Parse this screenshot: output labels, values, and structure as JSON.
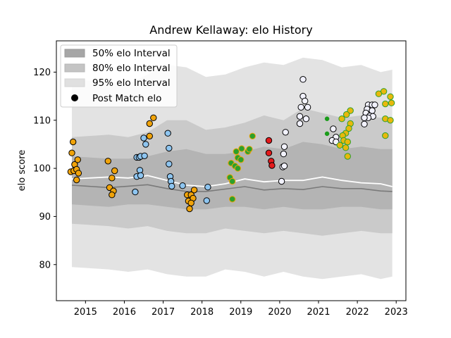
{
  "chart_data": {
    "type": "scatter",
    "title": "Andrew Kellaway: elo History",
    "xlabel": "",
    "ylabel": "elo score",
    "xlim": [
      2014.25,
      2023.25
    ],
    "ylim": [
      72.5,
      126.5
    ],
    "x_ticks": [
      2015,
      2016,
      2017,
      2018,
      2019,
      2020,
      2021,
      2022,
      2023
    ],
    "y_ticks": [
      80,
      90,
      100,
      110,
      120
    ],
    "grid": false,
    "legend_position": "top-left",
    "legend": [
      {
        "label": "50% elo Interval",
        "kind": "band",
        "color": "#a6a6a6"
      },
      {
        "label": "80% elo Interval",
        "kind": "band",
        "color": "#c4c4c4"
      },
      {
        "label": "95% elo Interval",
        "kind": "band",
        "color": "#e0e0e0"
      },
      {
        "label": "Post Match elo",
        "kind": "marker",
        "color": "#000000"
      }
    ],
    "colors": {
      "band95": "#e3e3e3",
      "band80": "#cacaca",
      "band50": "#b4b4b4",
      "mean_line": "#ffffff",
      "median_line": "#7a7a7a"
    },
    "bands": {
      "x": [
        2014.65,
        2015.6,
        2016.1,
        2016.6,
        2017.1,
        2017.6,
        2018.1,
        2018.6,
        2019.1,
        2019.6,
        2020.1,
        2020.6,
        2021.1,
        2021.6,
        2022.1,
        2022.6,
        2022.9
      ],
      "p95_low": [
        79.5,
        79.0,
        78.5,
        79.0,
        78.0,
        77.5,
        77.5,
        79.0,
        78.5,
        77.5,
        78.5,
        77.5,
        77.0,
        77.5,
        78.0,
        77.0,
        77.5
      ],
      "p95_high": [
        118.5,
        118.0,
        117.5,
        119.5,
        121.5,
        121.0,
        119.0,
        119.5,
        121.0,
        122.0,
        121.5,
        123.0,
        122.5,
        121.0,
        121.5,
        120.0,
        120.5
      ],
      "p80_low": [
        88.5,
        88.0,
        87.5,
        88.0,
        87.0,
        86.5,
        86.5,
        87.5,
        87.0,
        86.5,
        87.0,
        86.5,
        86.0,
        86.5,
        87.0,
        86.5,
        86.5
      ],
      "p80_high": [
        106.5,
        107.0,
        106.5,
        107.5,
        110.0,
        110.0,
        108.0,
        108.5,
        109.5,
        111.0,
        110.0,
        112.5,
        111.5,
        110.5,
        111.0,
        110.5,
        110.5
      ],
      "p50_low": [
        92.5,
        92.0,
        92.5,
        92.5,
        92.0,
        91.5,
        91.5,
        92.0,
        92.0,
        91.5,
        92.0,
        91.5,
        91.5,
        92.0,
        92.0,
        91.5,
        91.5
      ],
      "p50_high": [
        102.5,
        102.0,
        102.0,
        102.5,
        103.5,
        104.0,
        103.0,
        103.0,
        103.5,
        104.5,
        104.0,
        105.5,
        105.0,
        104.0,
        104.5,
        104.0,
        104.0
      ],
      "mean": [
        97.8,
        98.2,
        98.0,
        98.5,
        97.5,
        96.5,
        96.2,
        96.8,
        97.8,
        97.2,
        97.5,
        97.5,
        98.2,
        97.5,
        97.0,
        96.8,
        96.2
      ],
      "median": [
        96.5,
        96.0,
        96.3,
        96.6,
        95.8,
        95.2,
        95.2,
        95.7,
        96.2,
        95.5,
        95.8,
        95.6,
        96.2,
        95.8,
        95.8,
        95.3,
        95.2
      ]
    },
    "series": [
      {
        "color": "#f0a30a",
        "edge": "#000000",
        "points": [
          [
            2014.68,
            105.5
          ],
          [
            2014.65,
            103.2
          ],
          [
            2014.72,
            100.8
          ],
          [
            2014.8,
            101.8
          ],
          [
            2014.62,
            99.3
          ],
          [
            2014.7,
            99.5
          ],
          [
            2014.77,
            99.8
          ],
          [
            2014.82,
            99.0
          ],
          [
            2014.77,
            97.6
          ],
          [
            2015.58,
            101.5
          ],
          [
            2015.75,
            99.5
          ],
          [
            2015.68,
            98.0
          ],
          [
            2015.62,
            96.0
          ],
          [
            2015.72,
            95.3
          ],
          [
            2015.68,
            94.5
          ],
          [
            2016.65,
            109.3
          ],
          [
            2016.75,
            110.5
          ],
          [
            2016.65,
            106.7
          ],
          [
            2017.62,
            94.5
          ],
          [
            2017.72,
            94.5
          ],
          [
            2017.8,
            95.5
          ],
          [
            2017.65,
            93.2
          ],
          [
            2017.77,
            93.8
          ],
          [
            2017.72,
            92.8
          ],
          [
            2017.68,
            91.6
          ]
        ]
      },
      {
        "color": "#8ec5f0",
        "edge": "#000000",
        "points": [
          [
            2016.32,
            102.3
          ],
          [
            2016.38,
            102.3
          ],
          [
            2016.42,
            102.5
          ],
          [
            2016.52,
            102.6
          ],
          [
            2016.5,
            106.3
          ],
          [
            2016.55,
            105.0
          ],
          [
            2016.4,
            99.6
          ],
          [
            2016.32,
            98.3
          ],
          [
            2016.42,
            98.5
          ],
          [
            2016.28,
            95.1
          ],
          [
            2017.12,
            107.3
          ],
          [
            2017.15,
            104.2
          ],
          [
            2017.15,
            100.9
          ],
          [
            2017.18,
            98.3
          ],
          [
            2017.2,
            97.3
          ],
          [
            2017.22,
            96.3
          ],
          [
            2017.5,
            96.4
          ],
          [
            2018.15,
            96.1
          ],
          [
            2018.12,
            93.3
          ]
        ]
      },
      {
        "color": "#2ca02c",
        "edge": "#f0a30a",
        "points": [
          [
            2018.72,
            98.1
          ],
          [
            2018.78,
            97.3
          ],
          [
            2018.75,
            101.1
          ],
          [
            2018.85,
            100.5
          ],
          [
            2018.92,
            100.0
          ],
          [
            2018.88,
            103.5
          ],
          [
            2018.92,
            102.2
          ],
          [
            2019.02,
            104.1
          ],
          [
            2019.0,
            101.8
          ],
          [
            2019.18,
            103.5
          ],
          [
            2019.22,
            104.0
          ],
          [
            2019.3,
            106.7
          ],
          [
            2018.78,
            93.6
          ]
        ]
      },
      {
        "color": "#e31a1c",
        "edge": "#000000",
        "points": [
          [
            2019.72,
            105.8
          ],
          [
            2019.72,
            103.2
          ],
          [
            2019.78,
            101.5
          ],
          [
            2019.8,
            100.6
          ]
        ]
      },
      {
        "color": "#f2f2ff",
        "edge": "#000000",
        "points": [
          [
            2020.6,
            118.5
          ],
          [
            2020.6,
            115.0
          ],
          [
            2020.65,
            114.0
          ],
          [
            2020.55,
            112.7
          ],
          [
            2020.72,
            112.7
          ],
          [
            2020.52,
            110.8
          ],
          [
            2020.68,
            110.3
          ],
          [
            2020.52,
            109.3
          ],
          [
            2020.15,
            107.5
          ],
          [
            2020.12,
            104.5
          ],
          [
            2020.1,
            103.0
          ],
          [
            2020.08,
            100.3
          ],
          [
            2020.12,
            100.5
          ],
          [
            2020.05,
            97.3
          ],
          [
            2021.38,
            108.2
          ],
          [
            2021.45,
            106.5
          ],
          [
            2021.35,
            105.8
          ],
          [
            2021.45,
            105.5
          ],
          [
            2022.28,
            113.2
          ],
          [
            2022.38,
            113.2
          ],
          [
            2022.45,
            113.2
          ],
          [
            2022.25,
            112.3
          ],
          [
            2022.38,
            112.0
          ],
          [
            2022.22,
            111.5
          ],
          [
            2022.32,
            110.9
          ],
          [
            2022.4,
            110.8
          ],
          [
            2022.28,
            110.5
          ],
          [
            2022.18,
            110.5
          ],
          [
            2022.18,
            109.2
          ]
        ]
      },
      {
        "color": "#1a9c1a",
        "edge": "#1a9c1a",
        "size": 3,
        "points": [
          [
            2021.22,
            110.3
          ],
          [
            2021.22,
            107.2
          ]
        ]
      },
      {
        "color": "#e8b80c",
        "edge": "#2ca02c",
        "points": [
          [
            2021.82,
            112.0
          ],
          [
            2021.72,
            111.2
          ],
          [
            2021.6,
            110.3
          ],
          [
            2021.82,
            109.3
          ],
          [
            2021.78,
            108.3
          ],
          [
            2021.7,
            107.3
          ],
          [
            2021.62,
            106.8
          ],
          [
            2021.65,
            105.8
          ],
          [
            2021.75,
            105.5
          ],
          [
            2021.55,
            104.8
          ],
          [
            2021.7,
            104.3
          ],
          [
            2021.75,
            102.5
          ],
          [
            2022.68,
            116.0
          ],
          [
            2022.55,
            115.5
          ],
          [
            2022.85,
            114.9
          ],
          [
            2022.88,
            113.6
          ],
          [
            2022.72,
            113.4
          ],
          [
            2022.72,
            110.3
          ],
          [
            2022.85,
            110.0
          ],
          [
            2022.72,
            106.8
          ]
        ]
      }
    ]
  }
}
